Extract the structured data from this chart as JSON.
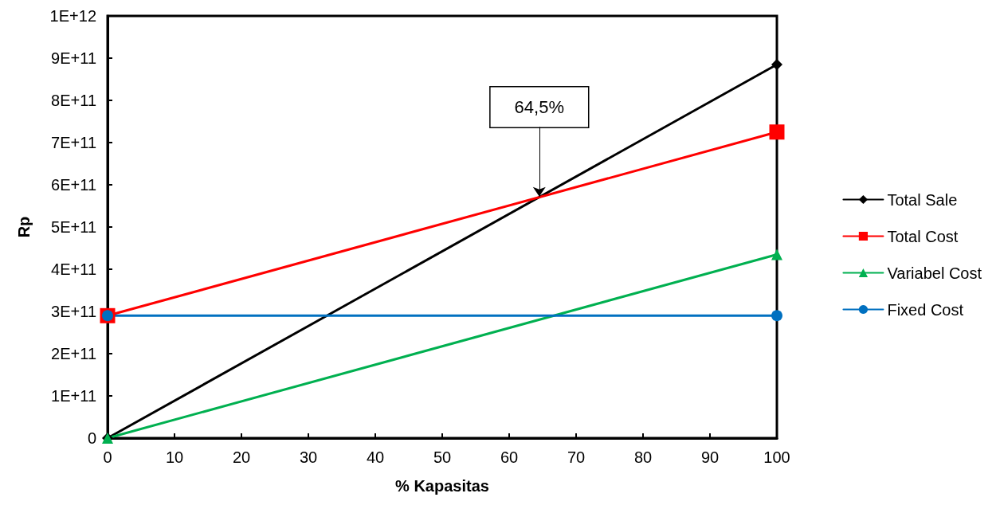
{
  "chart_data": {
    "type": "line",
    "xlabel": "% Kapasitas",
    "ylabel": "Rp",
    "xlim": [
      0,
      100
    ],
    "xticks": [
      0,
      10,
      20,
      30,
      40,
      50,
      60,
      70,
      80,
      90,
      100
    ],
    "ylim": [
      0,
      1000000000000
    ],
    "yticks": [
      {
        "value": 0,
        "label": "0"
      },
      {
        "value": 100000000000,
        "label": "1E+11"
      },
      {
        "value": 200000000000,
        "label": "2E+11"
      },
      {
        "value": 300000000000,
        "label": "3E+11"
      },
      {
        "value": 400000000000,
        "label": "4E+11"
      },
      {
        "value": 500000000000,
        "label": "5E+11"
      },
      {
        "value": 600000000000,
        "label": "6E+11"
      },
      {
        "value": 700000000000,
        "label": "7E+11"
      },
      {
        "value": 800000000000,
        "label": "8E+11"
      },
      {
        "value": 900000000000,
        "label": "9E+11"
      },
      {
        "value": 1000000000000,
        "label": "1E+12"
      }
    ],
    "x": [
      0,
      100
    ],
    "series": [
      {
        "name": "Total Sale",
        "color": "#000000",
        "marker": "diamond",
        "values": [
          0,
          885000000000
        ]
      },
      {
        "name": "Total Cost",
        "color": "#ff0000",
        "marker": "square",
        "values": [
          290000000000,
          725000000000
        ]
      },
      {
        "name": "Variabel Cost",
        "color": "#00b050",
        "marker": "triangle",
        "values": [
          0,
          435000000000
        ]
      },
      {
        "name": "Fixed Cost",
        "color": "#0070c0",
        "marker": "circle",
        "values": [
          290000000000,
          290000000000
        ]
      }
    ],
    "annotations": [
      {
        "text": "64,5%",
        "x": 64.5,
        "y": 572000000000
      }
    ],
    "grid": false,
    "legend": "right",
    "line_style": "solid"
  }
}
